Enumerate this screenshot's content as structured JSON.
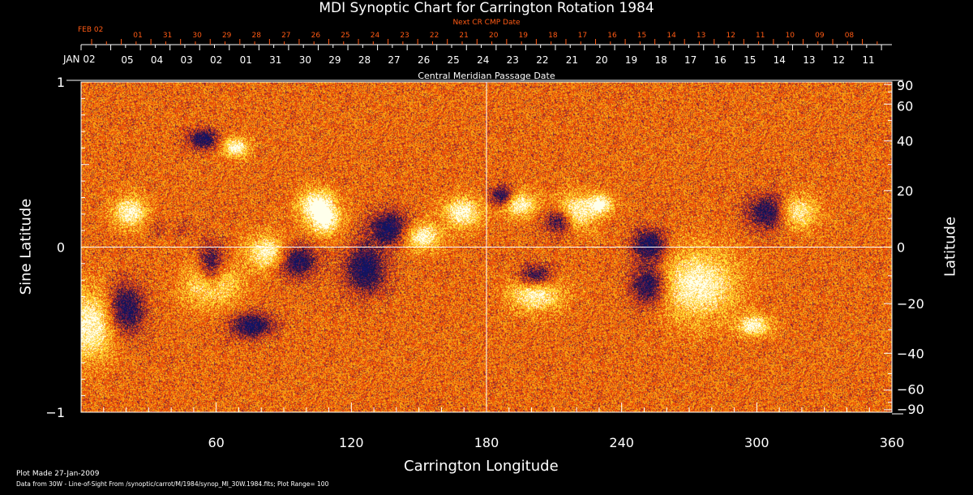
{
  "chart_data": {
    "type": "heatmap",
    "title": "MDI Synoptic Chart for Carrington Rotation 1984",
    "xlabel": "Carrington Longitude",
    "ylabel": "Sine Latitude",
    "y2label": "Latitude",
    "xlim": [
      0,
      360
    ],
    "ylim": [
      -1,
      1
    ],
    "x_ticks": [
      60,
      120,
      180,
      240,
      300,
      360
    ],
    "y_ticks": [
      "1",
      "0",
      "−1"
    ],
    "y_tick_values": [
      1,
      0,
      -1
    ],
    "y2_ticks": [
      90,
      60,
      40,
      20,
      0,
      -20,
      -40,
      -60,
      -90
    ],
    "top_axis_label": "Central Meridian Passage Date",
    "top_axis_start": "JAN 02",
    "top_axis_dates": [
      "05",
      "04",
      "03",
      "02",
      "01",
      "31",
      "30",
      "29",
      "28",
      "27",
      "26",
      "25",
      "24",
      "23",
      "22",
      "21",
      "20",
      "19",
      "18",
      "17",
      "16",
      "15",
      "14",
      "13",
      "12",
      "11"
    ],
    "next_axis_label": "Next CR CMP Date",
    "next_axis_start": "FEB 02",
    "next_axis_dates": [
      "01",
      "31",
      "30",
      "29",
      "28",
      "27",
      "26",
      "25",
      "24",
      "23",
      "22",
      "21",
      "20",
      "19",
      "18",
      "17",
      "16",
      "15",
      "14",
      "13",
      "12",
      "11",
      "10",
      "09",
      "08"
    ],
    "plot_range": 100,
    "colors": {
      "background": "#000000",
      "axis": "#ffffff",
      "next_axis": "#ff5a14",
      "field_base": "#e8420e",
      "positive": "#ffffe0",
      "negative": "#101040"
    }
  },
  "footer": {
    "plot_made": "Plot Made 27-Jan-2009",
    "data_from": "Data from 30W - Line-of-Sight From /synoptic/carrot/M/1984/synop_Ml_30W.1984.fits; Plot Range=  100"
  }
}
